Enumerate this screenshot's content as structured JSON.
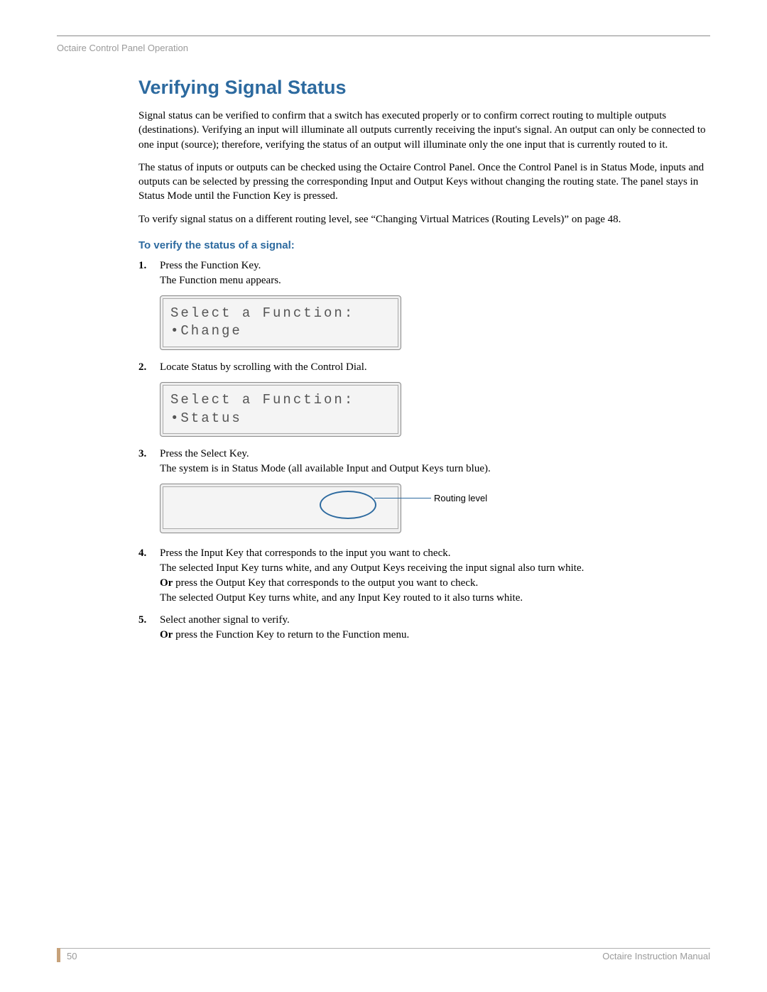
{
  "colors": {
    "heading": "#2d6a9f",
    "rule": "#8a8a8a",
    "muted": "#9a9a9a",
    "accent_bar": "#c7a27a",
    "ellipse": "#2d6a9f",
    "lcd_bg": "#f4f4f4",
    "lcd_border": "#888888",
    "lcd_text": "#555555"
  },
  "typography": {
    "title_fontsize_pt": 20,
    "body_fontsize_pt": 11,
    "subhead_fontsize_pt": 11,
    "lcd_fontsize_pt": 14,
    "footer_fontsize_pt": 10
  },
  "header": {
    "running_head": "Octaire Control Panel Operation"
  },
  "main": {
    "title": "Verifying Signal Status",
    "paragraphs": [
      "Signal status can be verified to confirm that a switch has executed properly or to confirm correct routing to multiple outputs (destinations). Verifying an input will illuminate all outputs currently receiving the input's signal. An output can only be connected to one input (source); therefore, verifying the status of an output will illuminate only the one input that is currently routed to it.",
      "The status of inputs or outputs can be checked using the Octaire Control Panel. Once the Control Panel is in Status Mode, inputs and outputs can be selected by pressing the corresponding Input and Output Keys without changing the routing state. The panel stays in Status Mode until the Function Key is pressed.",
      "To verify signal status on a different routing level, see “Changing Virtual Matrices (Routing Levels)” on page 48."
    ],
    "subhead": "To verify the status of a signal:",
    "steps": [
      {
        "num": "1.",
        "lines": [
          "Press the Function Key.",
          "The Function menu appears."
        ],
        "lcd": {
          "rows": [
            "Select a Function:",
            "•Change"
          ]
        }
      },
      {
        "num": "2.",
        "lines": [
          "Locate Status by scrolling with the Control Dial."
        ],
        "lcd": {
          "rows": [
            "Select a Function:",
            "•Status"
          ]
        }
      },
      {
        "num": "3.",
        "lines": [
          "Press the Select Key.",
          "The system is in Status Mode (all available Input and Output Keys turn blue)."
        ],
        "lcd_callout": {
          "label": "Routing level"
        }
      },
      {
        "num": "4.",
        "lines": [
          "Press the Input Key that corresponds to the input you want to check.",
          "The selected Input Key turns white, and any Output Keys receiving the input signal also turn white.",
          "<b>Or</b> press the Output Key that corresponds to the output you want to check.",
          "The selected Output Key turns white, and any Input Key routed to it also turns white."
        ]
      },
      {
        "num": "5.",
        "lines": [
          "Select another signal to verify.",
          "<b>Or</b> press the Function Key to return to the Function menu."
        ]
      }
    ]
  },
  "footer": {
    "page_number": "50",
    "manual_name": "Octaire Instruction Manual"
  }
}
